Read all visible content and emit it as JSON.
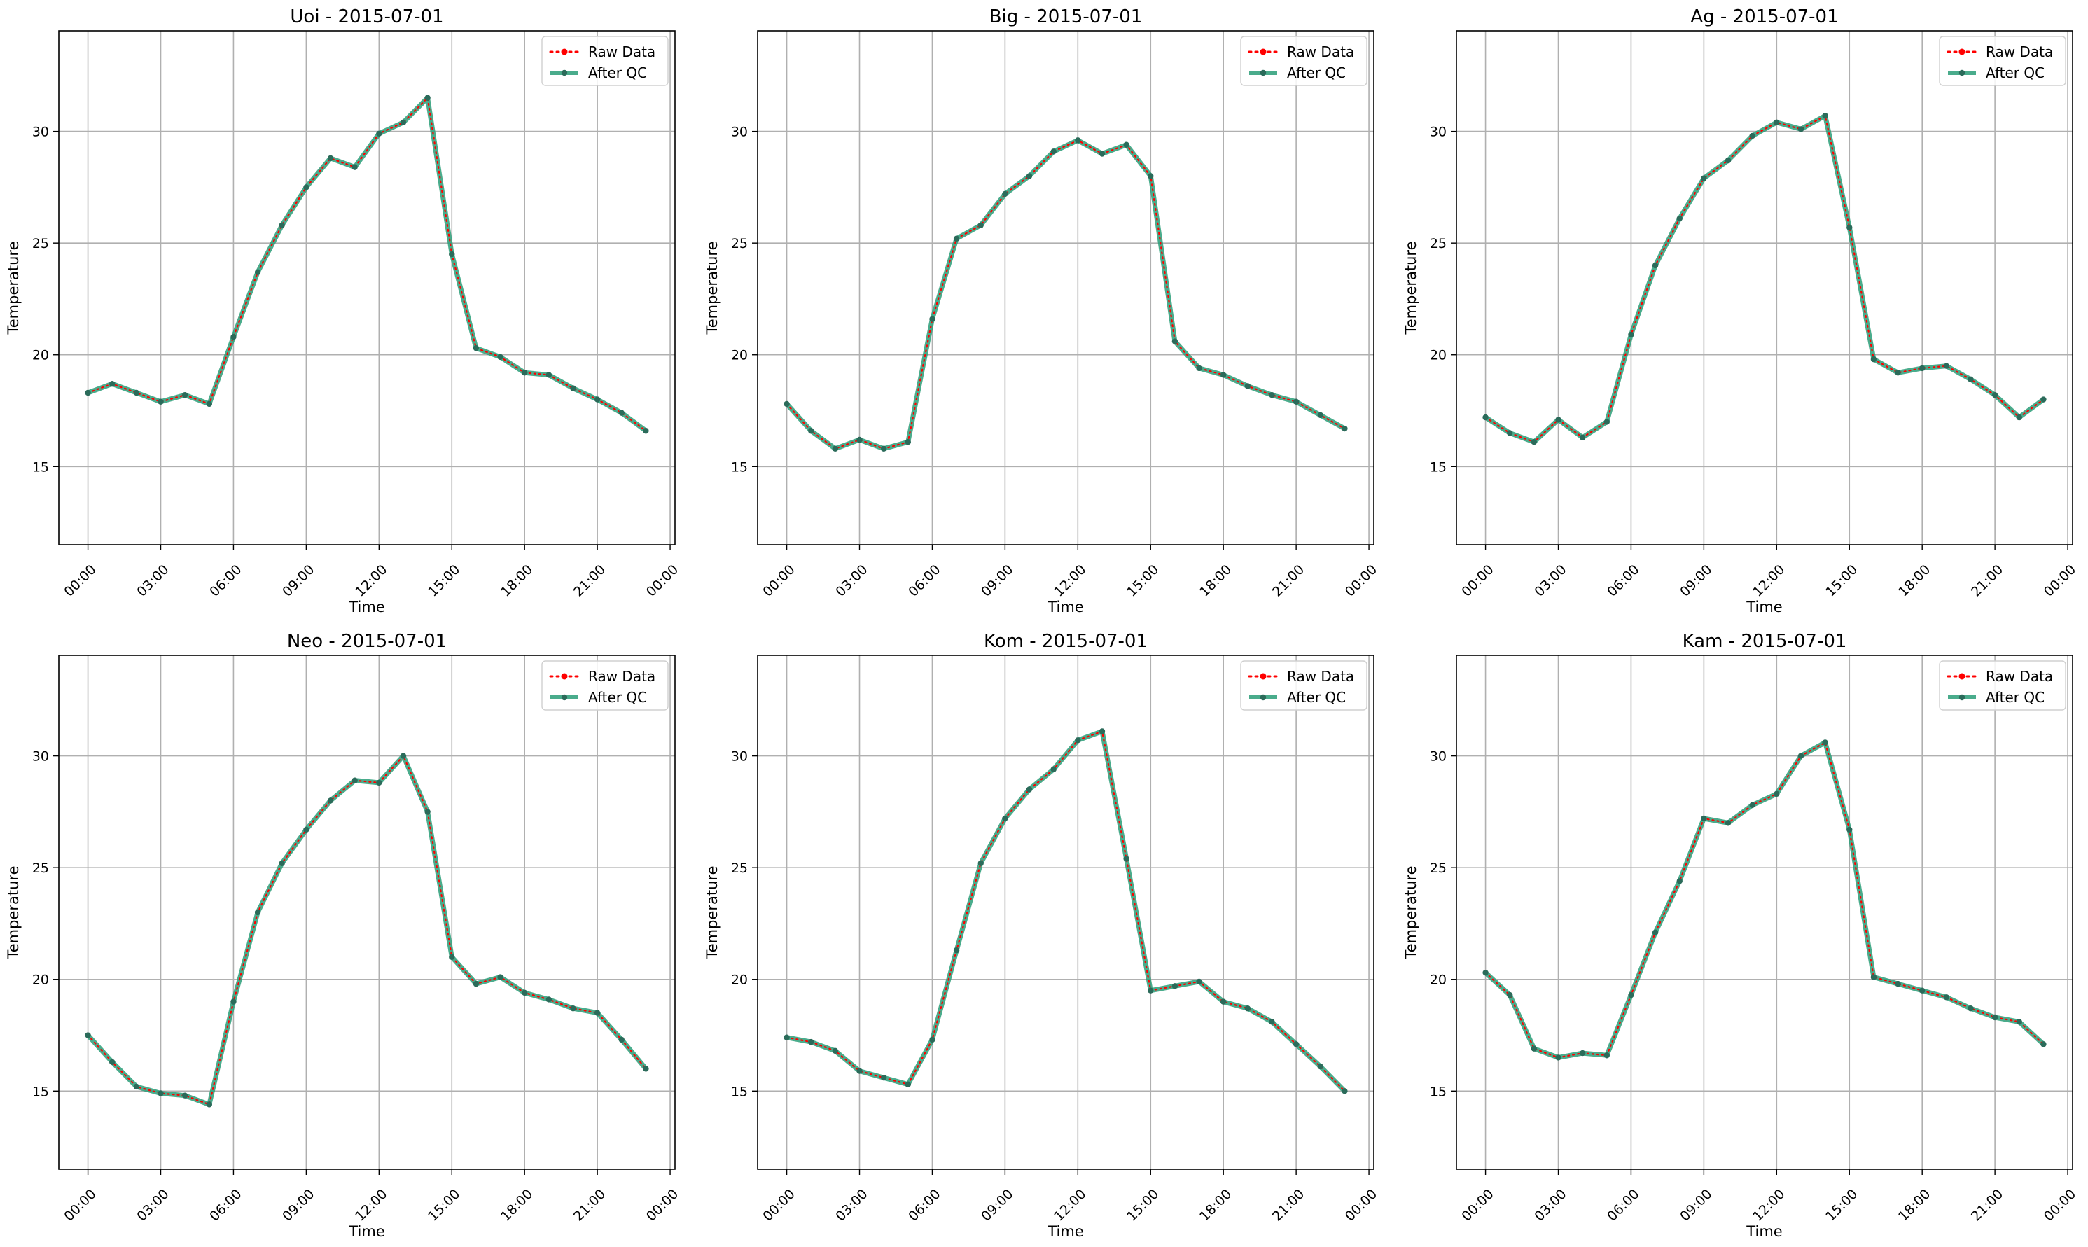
{
  "colors": {
    "raw": "#ff0000",
    "qc": "#2a9d78",
    "grid": "#b0b0b0"
  },
  "legend": {
    "raw_label": "Raw Data",
    "qc_label": "After QC",
    "placement": "top-right"
  },
  "chart_data": [
    {
      "type": "line",
      "title": "Uoi - 2015-07-01",
      "xlabel": "Time",
      "ylabel": "Temperature",
      "x": [
        "00:00",
        "01:00",
        "02:00",
        "03:00",
        "04:00",
        "05:00",
        "06:00",
        "07:00",
        "08:00",
        "09:00",
        "10:00",
        "11:00",
        "12:00",
        "13:00",
        "14:00",
        "15:00",
        "16:00",
        "17:00",
        "18:00",
        "19:00",
        "20:00",
        "21:00",
        "22:00",
        "23:00"
      ],
      "xticks": [
        "00:00",
        "03:00",
        "06:00",
        "09:00",
        "12:00",
        "15:00",
        "18:00",
        "21:00",
        "00:00"
      ],
      "yticks": [
        15,
        20,
        25,
        30
      ],
      "ylim": [
        11.5,
        34.5
      ],
      "grid": true,
      "series": [
        {
          "name": "Raw Data",
          "values": [
            18.3,
            18.7,
            18.3,
            17.9,
            18.2,
            17.8,
            20.8,
            23.7,
            25.8,
            27.5,
            28.8,
            28.4,
            29.9,
            30.4,
            31.5,
            24.5,
            20.3,
            19.9,
            19.2,
            19.1,
            18.5,
            18.0,
            17.4,
            16.6
          ]
        },
        {
          "name": "After QC",
          "values": [
            18.3,
            18.7,
            18.3,
            17.9,
            18.2,
            17.8,
            20.8,
            23.7,
            25.8,
            27.5,
            28.8,
            28.4,
            29.9,
            30.4,
            31.5,
            24.5,
            20.3,
            19.9,
            19.2,
            19.1,
            18.5,
            18.0,
            17.4,
            16.6
          ]
        }
      ]
    },
    {
      "type": "line",
      "title": "Big - 2015-07-01",
      "xlabel": "Time",
      "ylabel": "Temperature",
      "x": [
        "00:00",
        "01:00",
        "02:00",
        "03:00",
        "04:00",
        "05:00",
        "06:00",
        "07:00",
        "08:00",
        "09:00",
        "10:00",
        "11:00",
        "12:00",
        "13:00",
        "14:00",
        "15:00",
        "16:00",
        "17:00",
        "18:00",
        "19:00",
        "20:00",
        "21:00",
        "22:00",
        "23:00"
      ],
      "xticks": [
        "00:00",
        "03:00",
        "06:00",
        "09:00",
        "12:00",
        "15:00",
        "18:00",
        "21:00",
        "00:00"
      ],
      "yticks": [
        15,
        20,
        25,
        30
      ],
      "ylim": [
        11.5,
        34.5
      ],
      "grid": true,
      "series": [
        {
          "name": "Raw Data",
          "values": [
            17.8,
            16.6,
            15.8,
            16.2,
            15.8,
            16.1,
            21.6,
            25.2,
            25.8,
            27.2,
            28.0,
            29.1,
            29.6,
            29.0,
            29.4,
            28.0,
            20.6,
            19.4,
            19.1,
            18.6,
            18.2,
            17.9,
            17.3,
            16.7
          ]
        },
        {
          "name": "After QC",
          "values": [
            17.8,
            16.6,
            15.8,
            16.2,
            15.8,
            16.1,
            21.6,
            25.2,
            25.8,
            27.2,
            28.0,
            29.1,
            29.6,
            29.0,
            29.4,
            28.0,
            20.6,
            19.4,
            19.1,
            18.6,
            18.2,
            17.9,
            17.3,
            16.7
          ]
        }
      ]
    },
    {
      "type": "line",
      "title": "Ag - 2015-07-01",
      "xlabel": "Time",
      "ylabel": "Temperature",
      "x": [
        "00:00",
        "01:00",
        "02:00",
        "03:00",
        "04:00",
        "05:00",
        "06:00",
        "07:00",
        "08:00",
        "09:00",
        "10:00",
        "11:00",
        "12:00",
        "13:00",
        "14:00",
        "15:00",
        "16:00",
        "17:00",
        "18:00",
        "19:00",
        "20:00",
        "21:00",
        "22:00",
        "23:00"
      ],
      "xticks": [
        "00:00",
        "03:00",
        "06:00",
        "09:00",
        "12:00",
        "15:00",
        "18:00",
        "21:00",
        "00:00"
      ],
      "yticks": [
        15,
        20,
        25,
        30
      ],
      "ylim": [
        11.5,
        34.5
      ],
      "grid": true,
      "series": [
        {
          "name": "Raw Data",
          "values": [
            17.2,
            16.5,
            16.1,
            17.1,
            16.3,
            17.0,
            20.9,
            24.0,
            26.1,
            27.9,
            28.7,
            29.8,
            30.4,
            30.1,
            30.7,
            25.7,
            19.8,
            19.2,
            19.4,
            19.5,
            18.9,
            18.2,
            17.2,
            18.0
          ]
        },
        {
          "name": "After QC",
          "values": [
            17.2,
            16.5,
            16.1,
            17.1,
            16.3,
            17.0,
            20.9,
            24.0,
            26.1,
            27.9,
            28.7,
            29.8,
            30.4,
            30.1,
            30.7,
            25.7,
            19.8,
            19.2,
            19.4,
            19.5,
            18.9,
            18.2,
            17.2,
            18.0
          ]
        }
      ]
    },
    {
      "type": "line",
      "title": "Neo - 2015-07-01",
      "xlabel": "Time",
      "ylabel": "Temperature",
      "x": [
        "00:00",
        "01:00",
        "02:00",
        "03:00",
        "04:00",
        "05:00",
        "06:00",
        "07:00",
        "08:00",
        "09:00",
        "10:00",
        "11:00",
        "12:00",
        "13:00",
        "14:00",
        "15:00",
        "16:00",
        "17:00",
        "18:00",
        "19:00",
        "20:00",
        "21:00",
        "22:00",
        "23:00"
      ],
      "xticks": [
        "00:00",
        "03:00",
        "06:00",
        "09:00",
        "12:00",
        "15:00",
        "18:00",
        "21:00",
        "00:00"
      ],
      "yticks": [
        15,
        20,
        25,
        30
      ],
      "ylim": [
        11.5,
        34.5
      ],
      "grid": true,
      "series": [
        {
          "name": "Raw Data",
          "values": [
            17.5,
            16.3,
            15.2,
            14.9,
            14.8,
            14.4,
            19.0,
            23.0,
            25.2,
            26.7,
            28.0,
            28.9,
            28.8,
            30.0,
            27.5,
            21.0,
            19.8,
            20.1,
            19.4,
            19.1,
            18.7,
            18.5,
            17.3,
            16.0
          ]
        },
        {
          "name": "After QC",
          "values": [
            17.5,
            16.3,
            15.2,
            14.9,
            14.8,
            14.4,
            19.0,
            23.0,
            25.2,
            26.7,
            28.0,
            28.9,
            28.8,
            30.0,
            27.5,
            21.0,
            19.8,
            20.1,
            19.4,
            19.1,
            18.7,
            18.5,
            17.3,
            16.0
          ]
        }
      ]
    },
    {
      "type": "line",
      "title": "Kom - 2015-07-01",
      "xlabel": "Time",
      "ylabel": "Temperature",
      "x": [
        "00:00",
        "01:00",
        "02:00",
        "03:00",
        "04:00",
        "05:00",
        "06:00",
        "07:00",
        "08:00",
        "09:00",
        "10:00",
        "11:00",
        "12:00",
        "13:00",
        "14:00",
        "15:00",
        "16:00",
        "17:00",
        "18:00",
        "19:00",
        "20:00",
        "21:00",
        "22:00",
        "23:00"
      ],
      "xticks": [
        "00:00",
        "03:00",
        "06:00",
        "09:00",
        "12:00",
        "15:00",
        "18:00",
        "21:00",
        "00:00"
      ],
      "yticks": [
        15,
        20,
        25,
        30
      ],
      "ylim": [
        11.5,
        34.5
      ],
      "grid": true,
      "series": [
        {
          "name": "Raw Data",
          "values": [
            17.4,
            17.2,
            16.8,
            15.9,
            15.6,
            15.3,
            17.3,
            21.3,
            25.2,
            27.2,
            28.5,
            29.4,
            30.7,
            31.1,
            25.4,
            19.5,
            19.7,
            19.9,
            19.0,
            18.7,
            18.1,
            17.1,
            16.1,
            15.0
          ]
        },
        {
          "name": "After QC",
          "values": [
            17.4,
            17.2,
            16.8,
            15.9,
            15.6,
            15.3,
            17.3,
            21.3,
            25.2,
            27.2,
            28.5,
            29.4,
            30.7,
            31.1,
            25.4,
            19.5,
            19.7,
            19.9,
            19.0,
            18.7,
            18.1,
            17.1,
            16.1,
            15.0
          ]
        }
      ]
    },
    {
      "type": "line",
      "title": "Kam - 2015-07-01",
      "xlabel": "Time",
      "ylabel": "Temperature",
      "x": [
        "00:00",
        "01:00",
        "02:00",
        "03:00",
        "04:00",
        "05:00",
        "06:00",
        "07:00",
        "08:00",
        "09:00",
        "10:00",
        "11:00",
        "12:00",
        "13:00",
        "14:00",
        "15:00",
        "16:00",
        "17:00",
        "18:00",
        "19:00",
        "20:00",
        "21:00",
        "22:00",
        "23:00"
      ],
      "xticks": [
        "00:00",
        "03:00",
        "06:00",
        "09:00",
        "12:00",
        "15:00",
        "18:00",
        "21:00",
        "00:00"
      ],
      "yticks": [
        15,
        20,
        25,
        30
      ],
      "ylim": [
        11.5,
        34.5
      ],
      "grid": true,
      "series": [
        {
          "name": "Raw Data",
          "values": [
            20.3,
            19.3,
            16.9,
            16.5,
            16.7,
            16.6,
            19.3,
            22.1,
            24.4,
            27.2,
            27.0,
            27.8,
            28.3,
            30.0,
            30.6,
            26.7,
            20.1,
            19.8,
            19.5,
            19.2,
            18.7,
            18.3,
            18.1,
            17.1
          ]
        },
        {
          "name": "After QC",
          "values": [
            20.3,
            19.3,
            16.9,
            16.5,
            16.7,
            16.6,
            19.3,
            22.1,
            24.4,
            27.2,
            27.0,
            27.8,
            28.3,
            30.0,
            30.6,
            26.7,
            20.1,
            19.8,
            19.5,
            19.2,
            18.7,
            18.3,
            18.1,
            17.1
          ]
        }
      ]
    }
  ]
}
